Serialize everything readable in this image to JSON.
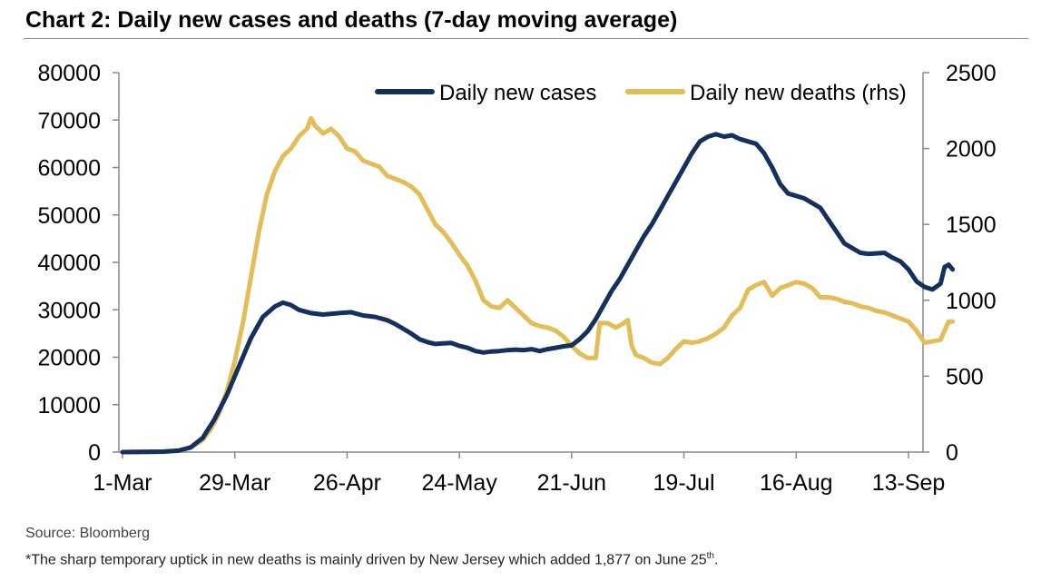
{
  "title": "Chart 2: Daily new cases and deaths (7-day moving average)",
  "source": "Source: Bloomberg",
  "footnote": {
    "text": "*The sharp temporary uptick in new deaths is mainly driven by New Jersey which added 1,877 on June 25",
    "sup": "th",
    "end": "."
  },
  "colors": {
    "cases": "#15305c",
    "deaths": "#e2bd58",
    "axis": "#888888"
  },
  "chart_data": {
    "type": "line",
    "title": "Chart 2: Daily new cases and deaths (7-day moving average)",
    "x_tick_labels": [
      "1-Mar",
      "29-Mar",
      "26-Apr",
      "24-May",
      "21-Jun",
      "19-Jul",
      "16-Aug",
      "13-Sep"
    ],
    "x_range_days": [
      0,
      200
    ],
    "x_tick_days": [
      0,
      28,
      56,
      84,
      112,
      140,
      168,
      196
    ],
    "y_left": {
      "min": 0,
      "max": 80000,
      "ticks": [
        "0",
        "10000",
        "20000",
        "30000",
        "40000",
        "50000",
        "60000",
        "70000",
        "80000"
      ]
    },
    "y_right": {
      "min": 0,
      "max": 2500,
      "ticks": [
        "0",
        "500",
        "1000",
        "1500",
        "2000",
        "2500"
      ]
    },
    "legend": {
      "position": "top-right",
      "cases": "Daily new cases",
      "deaths": "Daily new deaths (rhs)"
    },
    "series": [
      {
        "name": "Daily new cases",
        "axis": "left",
        "points": [
          [
            0,
            0
          ],
          [
            10,
            100
          ],
          [
            14,
            300
          ],
          [
            17,
            1000
          ],
          [
            20,
            3000
          ],
          [
            23,
            7000
          ],
          [
            26,
            12000
          ],
          [
            29,
            18000
          ],
          [
            32,
            24000
          ],
          [
            35,
            28500
          ],
          [
            38,
            30700
          ],
          [
            40,
            31500
          ],
          [
            42,
            31000
          ],
          [
            44,
            30000
          ],
          [
            47,
            29300
          ],
          [
            50,
            29000
          ],
          [
            54,
            29300
          ],
          [
            57,
            29500
          ],
          [
            60,
            28800
          ],
          [
            63,
            28500
          ],
          [
            66,
            27800
          ],
          [
            68,
            27000
          ],
          [
            70,
            26000
          ],
          [
            72,
            25000
          ],
          [
            74,
            23800
          ],
          [
            76,
            23200
          ],
          [
            78,
            22800
          ],
          [
            80,
            22900
          ],
          [
            82,
            23000
          ],
          [
            84,
            22400
          ],
          [
            86,
            22000
          ],
          [
            88,
            21300
          ],
          [
            90,
            21000
          ],
          [
            92,
            21200
          ],
          [
            94,
            21300
          ],
          [
            96,
            21500
          ],
          [
            98,
            21600
          ],
          [
            100,
            21500
          ],
          [
            102,
            21700
          ],
          [
            104,
            21300
          ],
          [
            106,
            21700
          ],
          [
            108,
            22000
          ],
          [
            110,
            22300
          ],
          [
            112,
            22500
          ],
          [
            114,
            23800
          ],
          [
            116,
            25500
          ],
          [
            118,
            28000
          ],
          [
            120,
            31000
          ],
          [
            122,
            34000
          ],
          [
            124,
            36500
          ],
          [
            126,
            39500
          ],
          [
            128,
            42500
          ],
          [
            130,
            45500
          ],
          [
            132,
            48000
          ],
          [
            134,
            51000
          ],
          [
            136,
            54000
          ],
          [
            138,
            57000
          ],
          [
            140,
            60000
          ],
          [
            142,
            63000
          ],
          [
            144,
            65500
          ],
          [
            146,
            66500
          ],
          [
            148,
            67000
          ],
          [
            150,
            66500
          ],
          [
            152,
            66800
          ],
          [
            154,
            66000
          ],
          [
            156,
            65500
          ],
          [
            158,
            65000
          ],
          [
            160,
            63000
          ],
          [
            162,
            60000
          ],
          [
            164,
            56500
          ],
          [
            166,
            54500
          ],
          [
            168,
            54000
          ],
          [
            170,
            53500
          ],
          [
            172,
            52500
          ],
          [
            174,
            51500
          ],
          [
            176,
            49000
          ],
          [
            178,
            46500
          ],
          [
            180,
            44000
          ],
          [
            182,
            43000
          ],
          [
            184,
            42000
          ],
          [
            186,
            41800
          ],
          [
            188,
            41900
          ],
          [
            190,
            42000
          ],
          [
            192,
            41000
          ],
          [
            194,
            40200
          ],
          [
            196,
            38500
          ],
          [
            198,
            36000
          ],
          [
            200,
            34800
          ],
          [
            202,
            34300
          ],
          [
            204,
            35500
          ],
          [
            205,
            39000
          ],
          [
            206,
            39500
          ],
          [
            207,
            38500
          ]
        ]
      },
      {
        "name": "Daily new deaths (rhs)",
        "axis": "right",
        "points": [
          [
            0,
            0
          ],
          [
            10,
            2
          ],
          [
            14,
            10
          ],
          [
            17,
            30
          ],
          [
            20,
            80
          ],
          [
            22,
            150
          ],
          [
            24,
            250
          ],
          [
            26,
            400
          ],
          [
            28,
            600
          ],
          [
            30,
            850
          ],
          [
            32,
            1150
          ],
          [
            34,
            1450
          ],
          [
            36,
            1700
          ],
          [
            38,
            1850
          ],
          [
            40,
            1950
          ],
          [
            42,
            2000
          ],
          [
            44,
            2080
          ],
          [
            46,
            2130
          ],
          [
            47,
            2200
          ],
          [
            48,
            2150
          ],
          [
            50,
            2100
          ],
          [
            52,
            2130
          ],
          [
            54,
            2080
          ],
          [
            56,
            2000
          ],
          [
            58,
            1980
          ],
          [
            60,
            1920
          ],
          [
            62,
            1900
          ],
          [
            64,
            1880
          ],
          [
            66,
            1820
          ],
          [
            68,
            1800
          ],
          [
            70,
            1780
          ],
          [
            72,
            1750
          ],
          [
            74,
            1700
          ],
          [
            76,
            1600
          ],
          [
            78,
            1500
          ],
          [
            80,
            1450
          ],
          [
            82,
            1380
          ],
          [
            84,
            1300
          ],
          [
            86,
            1230
          ],
          [
            88,
            1130
          ],
          [
            90,
            1000
          ],
          [
            92,
            960
          ],
          [
            94,
            950
          ],
          [
            96,
            1000
          ],
          [
            98,
            950
          ],
          [
            100,
            900
          ],
          [
            102,
            850
          ],
          [
            104,
            830
          ],
          [
            106,
            820
          ],
          [
            108,
            800
          ],
          [
            110,
            760
          ],
          [
            112,
            700
          ],
          [
            114,
            650
          ],
          [
            116,
            620
          ],
          [
            118,
            620
          ],
          [
            119,
            850
          ],
          [
            121,
            850
          ],
          [
            123,
            820
          ],
          [
            125,
            850
          ],
          [
            126,
            870
          ],
          [
            127,
            700
          ],
          [
            128,
            640
          ],
          [
            130,
            620
          ],
          [
            132,
            590
          ],
          [
            134,
            580
          ],
          [
            136,
            620
          ],
          [
            138,
            680
          ],
          [
            140,
            730
          ],
          [
            142,
            720
          ],
          [
            144,
            730
          ],
          [
            146,
            750
          ],
          [
            148,
            780
          ],
          [
            150,
            820
          ],
          [
            152,
            900
          ],
          [
            154,
            950
          ],
          [
            156,
            1070
          ],
          [
            158,
            1100
          ],
          [
            160,
            1120
          ],
          [
            162,
            1030
          ],
          [
            164,
            1080
          ],
          [
            166,
            1100
          ],
          [
            168,
            1120
          ],
          [
            170,
            1110
          ],
          [
            172,
            1080
          ],
          [
            174,
            1020
          ],
          [
            176,
            1020
          ],
          [
            178,
            1010
          ],
          [
            180,
            990
          ],
          [
            182,
            980
          ],
          [
            184,
            960
          ],
          [
            186,
            950
          ],
          [
            188,
            930
          ],
          [
            190,
            920
          ],
          [
            192,
            900
          ],
          [
            194,
            880
          ],
          [
            196,
            860
          ],
          [
            198,
            800
          ],
          [
            200,
            720
          ],
          [
            202,
            730
          ],
          [
            204,
            740
          ],
          [
            205,
            800
          ],
          [
            206,
            860
          ],
          [
            207,
            860
          ]
        ]
      }
    ]
  }
}
